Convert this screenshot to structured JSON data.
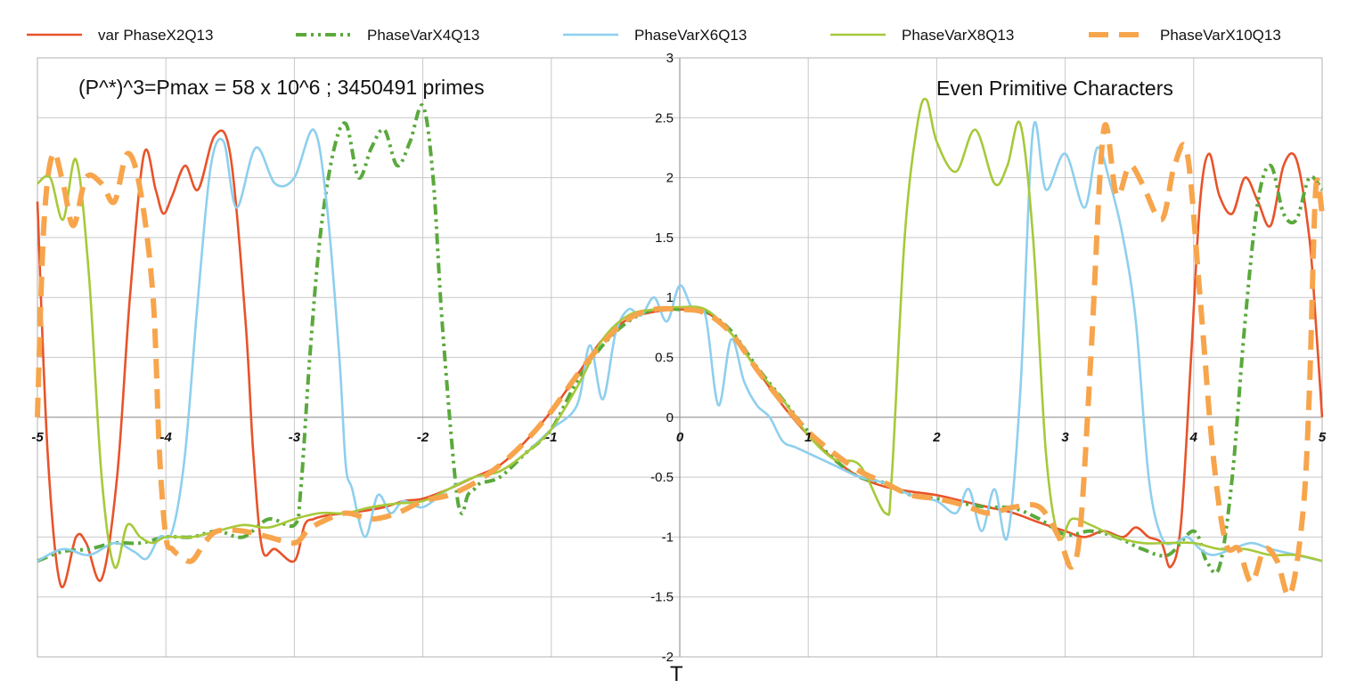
{
  "chart_data": {
    "type": "line",
    "title": "",
    "xlabel": "T",
    "ylabel": "",
    "xlim": [
      -5,
      5
    ],
    "ylim": [
      -2,
      3
    ],
    "x_ticks": [
      -5,
      -4,
      -3,
      -2,
      -1,
      0,
      1,
      2,
      3,
      4,
      5
    ],
    "y_ticks": [
      "3",
      "2.5",
      "2",
      "1.5",
      "1",
      "0.5",
      "0",
      "-0.5",
      "-1",
      "-1.5",
      "-2"
    ],
    "y_tick_values": [
      3,
      2.5,
      2,
      1.5,
      1,
      0.5,
      0,
      -0.5,
      -1,
      -1.5,
      -2
    ],
    "grid": true,
    "legend_position": "top",
    "annotations": [
      "(P^*)^3=Pmax = 58 x 10^6 ;  3450491 primes",
      "Even  Primitive Characters"
    ],
    "series": [
      {
        "name": "var PhaseX2Q13",
        "color": "#e8532a",
        "style": "solid",
        "x": [
          -5.0,
          -4.92,
          -4.82,
          -4.7,
          -4.62,
          -4.5,
          -4.38,
          -4.28,
          -4.17,
          -4.08,
          -4.02,
          -3.95,
          -3.85,
          -3.75,
          -3.62,
          -3.5,
          -3.38,
          -3.32,
          -3.25,
          -3.15,
          -3.0,
          -2.92,
          -2.85,
          -2.75,
          -2.6,
          -2.45,
          -2.3,
          -2.15,
          -2.0,
          -1.8,
          -1.6,
          -1.4,
          -1.2,
          -1.0,
          -0.8,
          -0.6,
          -0.4,
          -0.2,
          0.0,
          0.2,
          0.4,
          0.6,
          0.8,
          1.0,
          1.2,
          1.4,
          1.6,
          1.8,
          2.0,
          2.2,
          2.4,
          2.6,
          2.8,
          3.0,
          3.15,
          3.3,
          3.45,
          3.55,
          3.65,
          3.75,
          3.82,
          3.9,
          3.98,
          4.05,
          4.12,
          4.2,
          4.3,
          4.4,
          4.5,
          4.6,
          4.7,
          4.8,
          4.9,
          4.95,
          5.0
        ],
        "values": [
          1.8,
          -0.3,
          -1.4,
          -1.0,
          -1.05,
          -1.35,
          -0.5,
          1.0,
          2.2,
          1.9,
          1.7,
          1.85,
          2.1,
          1.9,
          2.35,
          2.2,
          0.8,
          -0.3,
          -1.1,
          -1.1,
          -1.2,
          -0.9,
          -0.85,
          -0.82,
          -0.8,
          -0.78,
          -0.75,
          -0.7,
          -0.68,
          -0.6,
          -0.5,
          -0.4,
          -0.2,
          0.05,
          0.35,
          0.65,
          0.82,
          0.88,
          0.9,
          0.88,
          0.7,
          0.4,
          0.1,
          -0.15,
          -0.35,
          -0.5,
          -0.58,
          -0.62,
          -0.65,
          -0.7,
          -0.75,
          -0.8,
          -0.88,
          -0.95,
          -1.0,
          -0.95,
          -1.0,
          -0.92,
          -1.0,
          -1.05,
          -1.25,
          -0.9,
          0.5,
          1.8,
          2.2,
          1.85,
          1.7,
          2.0,
          1.8,
          1.6,
          2.1,
          2.15,
          1.5,
          0.8,
          0.0
        ]
      },
      {
        "name": "PhaseVarX4Q13",
        "color": "#5aa93c",
        "style": "dashdot",
        "x": [
          -5.0,
          -4.8,
          -4.6,
          -4.4,
          -4.2,
          -4.0,
          -3.8,
          -3.6,
          -3.4,
          -3.2,
          -3.0,
          -2.95,
          -2.88,
          -2.8,
          -2.7,
          -2.6,
          -2.5,
          -2.4,
          -2.3,
          -2.2,
          -2.1,
          -2.0,
          -1.92,
          -1.85,
          -1.75,
          -1.7,
          -1.65,
          -1.6,
          -1.55,
          -1.4,
          -1.2,
          -1.0,
          -0.8,
          -0.6,
          -0.4,
          -0.2,
          0.0,
          0.2,
          0.4,
          0.6,
          0.8,
          1.0,
          1.2,
          1.4,
          1.6,
          1.8,
          2.0,
          2.2,
          2.4,
          2.6,
          2.8,
          3.0,
          3.2,
          3.4,
          3.6,
          3.8,
          4.0,
          4.1,
          4.2,
          4.3,
          4.4,
          4.5,
          4.6,
          4.7,
          4.8,
          4.9,
          5.0
        ],
        "values": [
          -1.2,
          -1.12,
          -1.1,
          -1.05,
          -1.05,
          -1.0,
          -1.0,
          -0.95,
          -1.0,
          -0.85,
          -0.9,
          -0.6,
          0.5,
          1.5,
          2.2,
          2.45,
          2.0,
          2.25,
          2.4,
          2.1,
          2.3,
          2.6,
          2.0,
          0.8,
          -0.5,
          -0.8,
          -0.65,
          -0.6,
          -0.55,
          -0.5,
          -0.3,
          -0.1,
          0.3,
          0.6,
          0.8,
          0.9,
          0.9,
          0.88,
          0.72,
          0.42,
          0.15,
          -0.12,
          -0.35,
          -0.5,
          -0.55,
          -0.65,
          -0.68,
          -0.72,
          -0.75,
          -0.76,
          -0.85,
          -0.98,
          -0.95,
          -1.0,
          -1.1,
          -1.15,
          -0.95,
          -1.2,
          -1.25,
          -0.5,
          0.8,
          1.8,
          2.1,
          1.7,
          1.65,
          2.0,
          1.9
        ]
      },
      {
        "name": "PhaseVarX6Q13",
        "color": "#8ecfee",
        "style": "solid",
        "x": [
          -5.0,
          -4.8,
          -4.6,
          -4.4,
          -4.25,
          -4.15,
          -4.05,
          -3.95,
          -3.85,
          -3.75,
          -3.65,
          -3.55,
          -3.45,
          -3.3,
          -3.15,
          -3.0,
          -2.85,
          -2.75,
          -2.65,
          -2.6,
          -2.55,
          -2.45,
          -2.35,
          -2.25,
          -2.15,
          -2.0,
          -1.8,
          -1.6,
          -1.4,
          -1.2,
          -1.0,
          -0.8,
          -0.7,
          -0.6,
          -0.5,
          -0.4,
          -0.3,
          -0.2,
          -0.1,
          0.0,
          0.1,
          0.2,
          0.3,
          0.4,
          0.5,
          0.6,
          0.7,
          0.8,
          0.9,
          1.0,
          1.2,
          1.4,
          1.6,
          1.8,
          2.0,
          2.15,
          2.25,
          2.35,
          2.45,
          2.55,
          2.65,
          2.75,
          2.85,
          3.0,
          3.15,
          3.25,
          3.35,
          3.45,
          3.55,
          3.65,
          3.75,
          3.85,
          3.95,
          4.05,
          4.15,
          4.3,
          4.45,
          4.6,
          4.8,
          5.0
        ],
        "values": [
          -1.2,
          -1.1,
          -1.15,
          -1.05,
          -1.12,
          -1.18,
          -1.0,
          -0.95,
          -0.3,
          1.0,
          2.1,
          2.3,
          1.75,
          2.25,
          1.95,
          2.0,
          2.4,
          1.8,
          0.5,
          -0.4,
          -0.6,
          -1.0,
          -0.65,
          -0.8,
          -0.7,
          -0.75,
          -0.6,
          -0.5,
          -0.45,
          -0.3,
          -0.1,
          0.1,
          0.6,
          0.15,
          0.7,
          0.9,
          0.85,
          1.0,
          0.8,
          1.1,
          0.9,
          0.85,
          0.1,
          0.65,
          0.3,
          0.1,
          0.0,
          -0.2,
          -0.25,
          -0.3,
          -0.4,
          -0.5,
          -0.55,
          -0.65,
          -0.7,
          -0.8,
          -0.6,
          -0.95,
          -0.6,
          -1.0,
          0.2,
          2.4,
          1.9,
          2.2,
          1.75,
          2.25,
          1.95,
          1.5,
          0.8,
          -0.5,
          -1.0,
          -1.05,
          -1.0,
          -1.1,
          -1.15,
          -1.1,
          -1.05,
          -1.1,
          -1.15,
          -1.2
        ]
      },
      {
        "name": "PhaseVarX8Q13",
        "color": "#a6c93a",
        "style": "solid",
        "x": [
          -5.0,
          -4.9,
          -4.8,
          -4.7,
          -4.6,
          -4.5,
          -4.4,
          -4.3,
          -4.2,
          -4.1,
          -4.0,
          -3.8,
          -3.6,
          -3.4,
          -3.2,
          -3.0,
          -2.8,
          -2.6,
          -2.4,
          -2.2,
          -2.0,
          -1.8,
          -1.6,
          -1.4,
          -1.2,
          -1.0,
          -0.8,
          -0.6,
          -0.4,
          -0.2,
          0.0,
          0.2,
          0.4,
          0.6,
          0.8,
          1.0,
          1.2,
          1.4,
          1.6,
          1.65,
          1.75,
          1.85,
          1.92,
          2.0,
          2.15,
          2.3,
          2.45,
          2.55,
          2.65,
          2.75,
          2.85,
          2.95,
          3.05,
          3.2,
          3.4,
          3.6,
          3.8,
          4.0,
          4.2,
          4.4,
          4.6,
          4.8,
          5.0
        ],
        "values": [
          1.95,
          2.0,
          1.65,
          2.15,
          1.2,
          -0.5,
          -1.25,
          -0.9,
          -1.0,
          -1.05,
          -1.0,
          -1.0,
          -0.95,
          -0.9,
          -0.92,
          -0.85,
          -0.8,
          -0.8,
          -0.75,
          -0.72,
          -0.7,
          -0.6,
          -0.5,
          -0.45,
          -0.3,
          -0.1,
          0.25,
          0.65,
          0.85,
          0.9,
          0.92,
          0.9,
          0.7,
          0.4,
          0.15,
          -0.15,
          -0.35,
          -0.4,
          -0.8,
          -0.5,
          1.5,
          2.45,
          2.65,
          2.3,
          2.05,
          2.4,
          1.95,
          2.1,
          2.45,
          1.5,
          -0.3,
          -1.0,
          -0.85,
          -0.9,
          -1.0,
          -1.05,
          -1.05,
          -1.05,
          -1.1,
          -1.1,
          -1.15,
          -1.15,
          -1.2
        ]
      },
      {
        "name": "PhaseVarX10Q13",
        "color": "#f7a54c",
        "style": "dashed",
        "x": [
          -5.0,
          -4.95,
          -4.88,
          -4.8,
          -4.72,
          -4.62,
          -4.5,
          -4.4,
          -4.3,
          -4.2,
          -4.1,
          -4.05,
          -4.0,
          -3.95,
          -3.9,
          -3.8,
          -3.7,
          -3.6,
          -3.4,
          -3.2,
          -3.0,
          -2.9,
          -2.8,
          -2.6,
          -2.4,
          -2.2,
          -2.0,
          -1.8,
          -1.6,
          -1.4,
          -1.2,
          -1.0,
          -0.8,
          -0.6,
          -0.4,
          -0.2,
          0.0,
          0.2,
          0.4,
          0.6,
          0.8,
          1.0,
          1.2,
          1.4,
          1.6,
          1.8,
          2.0,
          2.2,
          2.4,
          2.6,
          2.8,
          2.95,
          3.05,
          3.12,
          3.2,
          3.3,
          3.4,
          3.5,
          3.6,
          3.75,
          3.85,
          3.95,
          4.05,
          4.15,
          4.25,
          4.35,
          4.45,
          4.55,
          4.65,
          4.75,
          4.85,
          4.9,
          4.95,
          5.0
        ],
        "values": [
          0.0,
          1.6,
          2.2,
          1.95,
          1.6,
          2.0,
          1.95,
          1.8,
          2.2,
          1.9,
          1.0,
          -0.3,
          -1.0,
          -1.1,
          -1.15,
          -1.2,
          -1.05,
          -0.95,
          -0.95,
          -1.0,
          -1.05,
          -0.95,
          -0.88,
          -0.8,
          -0.85,
          -0.8,
          -0.7,
          -0.65,
          -0.55,
          -0.4,
          -0.2,
          0.05,
          0.35,
          0.62,
          0.82,
          0.9,
          0.9,
          0.87,
          0.7,
          0.4,
          0.12,
          -0.12,
          -0.3,
          -0.45,
          -0.55,
          -0.65,
          -0.68,
          -0.73,
          -0.8,
          -0.75,
          -0.75,
          -1.0,
          -1.25,
          -0.9,
          0.5,
          2.4,
          1.85,
          2.1,
          1.95,
          1.65,
          2.1,
          2.2,
          1.0,
          -0.3,
          -1.05,
          -1.1,
          -1.38,
          -1.1,
          -1.2,
          -1.48,
          -0.8,
          0.2,
          1.9,
          1.7
        ]
      }
    ]
  }
}
